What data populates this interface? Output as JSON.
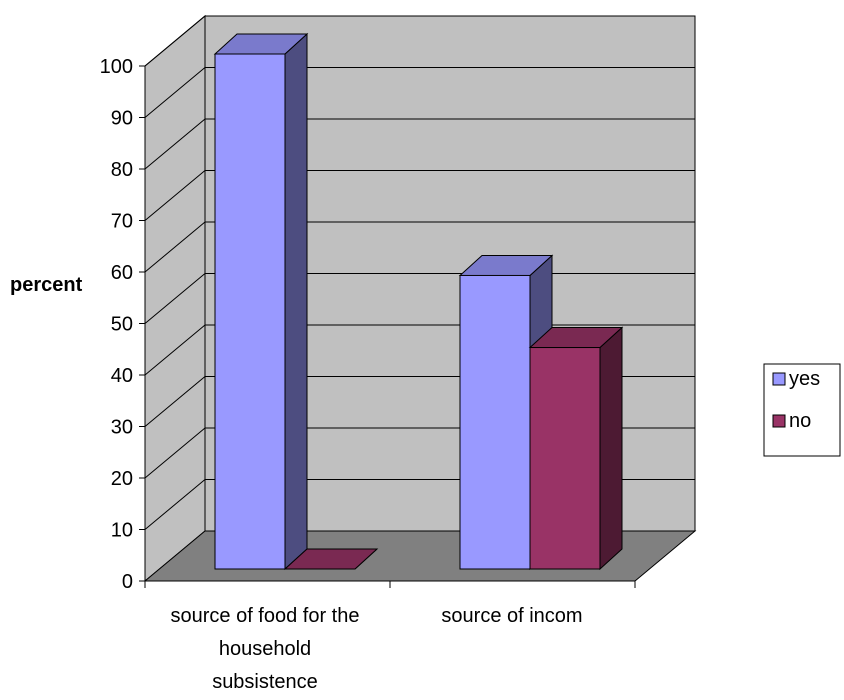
{
  "chart_data": {
    "type": "bar",
    "style": "3d-clustered-column",
    "ylabel": "percent",
    "xlabel": "",
    "ylim": [
      0,
      100
    ],
    "yticks": [
      0,
      10,
      20,
      30,
      40,
      50,
      60,
      70,
      80,
      90,
      100
    ],
    "categories": [
      [
        "source of food for the",
        "household",
        "subsistence"
      ],
      [
        "source of incom"
      ]
    ],
    "series": [
      {
        "name": "yes",
        "values": [
          100,
          57
        ],
        "color": "#9999FF"
      },
      {
        "name": "no",
        "values": [
          0,
          43
        ],
        "color": "#993366"
      }
    ],
    "legend_position": "right",
    "grid": true,
    "colors": {
      "wall": "#C0C0C0",
      "floor": "#808080",
      "gridline": "#000000"
    }
  }
}
